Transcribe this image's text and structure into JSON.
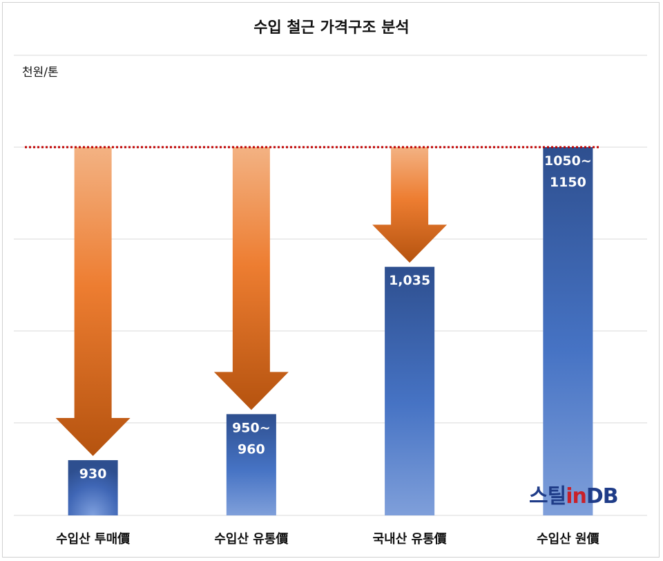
{
  "chart_data": {
    "type": "bar",
    "title": "수입 철근 가격구조 분석",
    "ylabel": "천원/톤",
    "categories": [
      "수입산 투매價",
      "수입산 유통價",
      "국내산 유통價",
      "수입산 원價"
    ],
    "values": [
      930,
      955,
      1035,
      1100
    ],
    "labels": [
      [
        "930"
      ],
      [
        "950~",
        "960"
      ],
      [
        "1,035"
      ],
      [
        "1050~",
        "1150"
      ]
    ],
    "reference_line": 1100,
    "arrows": [
      true,
      true,
      true,
      false
    ],
    "ylim": [
      900,
      1100
    ],
    "grid": true,
    "colors": {
      "bar": "#2f5597",
      "arrow": "#ed7d31",
      "ref_line": "#c00000"
    }
  },
  "logo": {
    "part1": "스틸",
    "part2": "in",
    "part3": "DB"
  }
}
